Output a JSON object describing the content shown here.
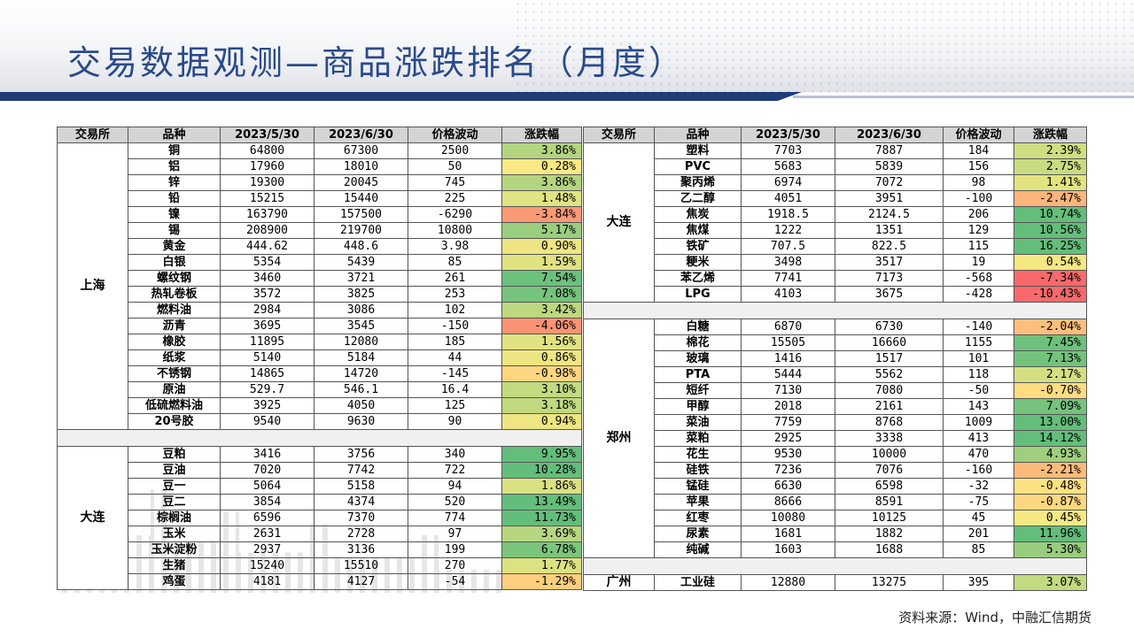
{
  "title": "交易数据观测—商品涨跌排名（月度）",
  "source": "资料来源：Wind，中融汇信期货",
  "colors": {
    "pos_strong": "#63be7b",
    "pos_light": "#c6e0a4",
    "neutral": "#fde9a0",
    "neg_light": "#fbb97c",
    "neg_strong": "#f8696b",
    "header_bg": "#d4d4d4",
    "title": "#2a4a8a",
    "accent_bar": "#1f3b78"
  },
  "headers": [
    "交易所",
    "品种",
    "2023/5/30",
    "2023/6/30",
    "价格波动",
    "涨跌幅"
  ],
  "left_groups": [
    {
      "exchange": "上海",
      "rows": [
        {
          "name": "铜",
          "d1": "64800",
          "d2": "67300",
          "chg": "2500",
          "pct": "3.86%",
          "v": 3.86
        },
        {
          "name": "铝",
          "d1": "17960",
          "d2": "18010",
          "chg": "50",
          "pct": "0.28%",
          "v": 0.28
        },
        {
          "name": "锌",
          "d1": "19300",
          "d2": "20045",
          "chg": "745",
          "pct": "3.86%",
          "v": 3.86
        },
        {
          "name": "铅",
          "d1": "15215",
          "d2": "15440",
          "chg": "225",
          "pct": "1.48%",
          "v": 1.48
        },
        {
          "name": "镍",
          "d1": "163790",
          "d2": "157500",
          "chg": "-6290",
          "pct": "-3.84%",
          "v": -3.84
        },
        {
          "name": "锡",
          "d1": "208900",
          "d2": "219700",
          "chg": "10800",
          "pct": "5.17%",
          "v": 5.17
        },
        {
          "name": "黄金",
          "d1": "444.62",
          "d2": "448.6",
          "chg": "3.98",
          "pct": "0.90%",
          "v": 0.9
        },
        {
          "name": "白银",
          "d1": "5354",
          "d2": "5439",
          "chg": "85",
          "pct": "1.59%",
          "v": 1.59
        },
        {
          "name": "螺纹钢",
          "d1": "3460",
          "d2": "3721",
          "chg": "261",
          "pct": "7.54%",
          "v": 7.54
        },
        {
          "name": "热轧卷板",
          "d1": "3572",
          "d2": "3825",
          "chg": "253",
          "pct": "7.08%",
          "v": 7.08
        },
        {
          "name": "燃料油",
          "d1": "2984",
          "d2": "3086",
          "chg": "102",
          "pct": "3.42%",
          "v": 3.42
        },
        {
          "name": "沥青",
          "d1": "3695",
          "d2": "3545",
          "chg": "-150",
          "pct": "-4.06%",
          "v": -4.06
        },
        {
          "name": "橡胶",
          "d1": "11895",
          "d2": "12080",
          "chg": "185",
          "pct": "1.56%",
          "v": 1.56
        },
        {
          "name": "纸浆",
          "d1": "5140",
          "d2": "5184",
          "chg": "44",
          "pct": "0.86%",
          "v": 0.86
        },
        {
          "name": "不锈钢",
          "d1": "14865",
          "d2": "14720",
          "chg": "-145",
          "pct": "-0.98%",
          "v": -0.98
        },
        {
          "name": "原油",
          "d1": "529.7",
          "d2": "546.1",
          "chg": "16.4",
          "pct": "3.10%",
          "v": 3.1
        },
        {
          "name": "低硫燃料油",
          "d1": "3925",
          "d2": "4050",
          "chg": "125",
          "pct": "3.18%",
          "v": 3.18
        },
        {
          "name": "20号胶",
          "d1": "9540",
          "d2": "9630",
          "chg": "90",
          "pct": "0.94%",
          "v": 0.94
        }
      ]
    },
    {
      "gap": true
    },
    {
      "exchange": "大连",
      "rows": [
        {
          "name": "豆粕",
          "d1": "3416",
          "d2": "3756",
          "chg": "340",
          "pct": "9.95%",
          "v": 9.95
        },
        {
          "name": "豆油",
          "d1": "7020",
          "d2": "7742",
          "chg": "722",
          "pct": "10.28%",
          "v": 10.28
        },
        {
          "name": "豆一",
          "d1": "5064",
          "d2": "5158",
          "chg": "94",
          "pct": "1.86%",
          "v": 1.86
        },
        {
          "name": "豆二",
          "d1": "3854",
          "d2": "4374",
          "chg": "520",
          "pct": "13.49%",
          "v": 13.49
        },
        {
          "name": "棕榈油",
          "d1": "6596",
          "d2": "7370",
          "chg": "774",
          "pct": "11.73%",
          "v": 11.73
        },
        {
          "name": "玉米",
          "d1": "2631",
          "d2": "2728",
          "chg": "97",
          "pct": "3.69%",
          "v": 3.69
        },
        {
          "name": "玉米淀粉",
          "d1": "2937",
          "d2": "3136",
          "chg": "199",
          "pct": "6.78%",
          "v": 6.78
        },
        {
          "name": "生猪",
          "d1": "15240",
          "d2": "15510",
          "chg": "270",
          "pct": "1.77%",
          "v": 1.77
        },
        {
          "name": "鸡蛋",
          "d1": "4181",
          "d2": "4127",
          "chg": "-54",
          "pct": "-1.29%",
          "v": -1.29
        }
      ]
    }
  ],
  "right_groups": [
    {
      "exchange": "大连",
      "rows": [
        {
          "name": "塑料",
          "d1": "7703",
          "d2": "7887",
          "chg": "184",
          "pct": "2.39%",
          "v": 2.39
        },
        {
          "name": "PVC",
          "d1": "5683",
          "d2": "5839",
          "chg": "156",
          "pct": "2.75%",
          "v": 2.75
        },
        {
          "name": "聚丙烯",
          "d1": "6974",
          "d2": "7072",
          "chg": "98",
          "pct": "1.41%",
          "v": 1.41
        },
        {
          "name": "乙二醇",
          "d1": "4051",
          "d2": "3951",
          "chg": "-100",
          "pct": "-2.47%",
          "v": -2.47
        },
        {
          "name": "焦炭",
          "d1": "1918.5",
          "d2": "2124.5",
          "chg": "206",
          "pct": "10.74%",
          "v": 10.74
        },
        {
          "name": "焦煤",
          "d1": "1222",
          "d2": "1351",
          "chg": "129",
          "pct": "10.56%",
          "v": 10.56
        },
        {
          "name": "铁矿",
          "d1": "707.5",
          "d2": "822.5",
          "chg": "115",
          "pct": "16.25%",
          "v": 16.25
        },
        {
          "name": "粳米",
          "d1": "3498",
          "d2": "3517",
          "chg": "19",
          "pct": "0.54%",
          "v": 0.54
        },
        {
          "name": "苯乙烯",
          "d1": "7741",
          "d2": "7173",
          "chg": "-568",
          "pct": "-7.34%",
          "v": -7.34
        },
        {
          "name": "LPG",
          "d1": "4103",
          "d2": "3675",
          "chg": "-428",
          "pct": "-10.43%",
          "v": -10.43
        }
      ]
    },
    {
      "gap": true
    },
    {
      "exchange": "郑州",
      "rows": [
        {
          "name": "白糖",
          "d1": "6870",
          "d2": "6730",
          "chg": "-140",
          "pct": "-2.04%",
          "v": -2.04
        },
        {
          "name": "棉花",
          "d1": "15505",
          "d2": "16660",
          "chg": "1155",
          "pct": "7.45%",
          "v": 7.45
        },
        {
          "name": "玻璃",
          "d1": "1416",
          "d2": "1517",
          "chg": "101",
          "pct": "7.13%",
          "v": 7.13
        },
        {
          "name": "PTA",
          "d1": "5444",
          "d2": "5562",
          "chg": "118",
          "pct": "2.17%",
          "v": 2.17
        },
        {
          "name": "短纤",
          "d1": "7130",
          "d2": "7080",
          "chg": "-50",
          "pct": "-0.70%",
          "v": -0.7
        },
        {
          "name": "甲醇",
          "d1": "2018",
          "d2": "2161",
          "chg": "143",
          "pct": "7.09%",
          "v": 7.09
        },
        {
          "name": "菜油",
          "d1": "7759",
          "d2": "8768",
          "chg": "1009",
          "pct": "13.00%",
          "v": 13.0
        },
        {
          "name": "菜粕",
          "d1": "2925",
          "d2": "3338",
          "chg": "413",
          "pct": "14.12%",
          "v": 14.12
        },
        {
          "name": "花生",
          "d1": "9530",
          "d2": "10000",
          "chg": "470",
          "pct": "4.93%",
          "v": 4.93
        },
        {
          "name": "硅铁",
          "d1": "7236",
          "d2": "7076",
          "chg": "-160",
          "pct": "-2.21%",
          "v": -2.21
        },
        {
          "name": "锰硅",
          "d1": "6630",
          "d2": "6598",
          "chg": "-32",
          "pct": "-0.48%",
          "v": -0.48
        },
        {
          "name": "苹果",
          "d1": "8666",
          "d2": "8591",
          "chg": "-75",
          "pct": "-0.87%",
          "v": -0.87
        },
        {
          "name": "红枣",
          "d1": "10080",
          "d2": "10125",
          "chg": "45",
          "pct": "0.45%",
          "v": 0.45
        },
        {
          "name": "尿素",
          "d1": "1681",
          "d2": "1882",
          "chg": "201",
          "pct": "11.96%",
          "v": 11.96
        },
        {
          "name": "纯碱",
          "d1": "1603",
          "d2": "1688",
          "chg": "85",
          "pct": "5.30%",
          "v": 5.3
        }
      ]
    },
    {
      "gap": true
    },
    {
      "exchange": "广州",
      "rows": [
        {
          "name": "工业硅",
          "d1": "12880",
          "d2": "13275",
          "chg": "395",
          "pct": "3.07%",
          "v": 3.07
        }
      ]
    }
  ]
}
